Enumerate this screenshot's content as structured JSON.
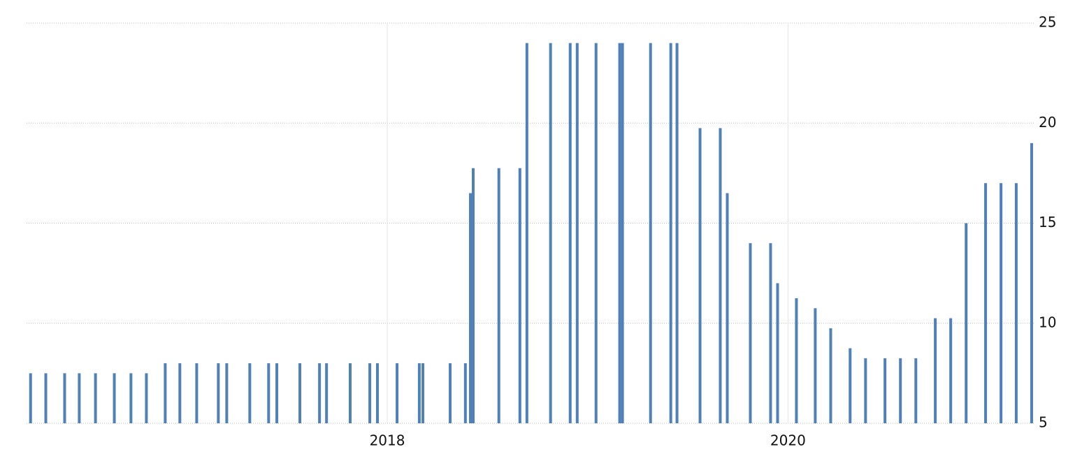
{
  "chart_data": {
    "type": "bar",
    "x": [
      2016.22,
      2016.296,
      2016.39,
      2016.463,
      2016.544,
      2016.638,
      2016.721,
      2016.798,
      2016.892,
      2016.965,
      2017.049,
      2017.157,
      2017.199,
      2017.314,
      2017.408,
      2017.449,
      2017.564,
      2017.662,
      2017.697,
      2017.815,
      2017.913,
      2017.951,
      2018.049,
      2018.16,
      2018.178,
      2018.314,
      2018.39,
      2018.415,
      2018.429,
      2018.557,
      2018.662,
      2018.697,
      2018.815,
      2018.913,
      2018.948,
      2019.042,
      2019.16,
      2019.174,
      2019.314,
      2019.415,
      2019.446,
      2019.561,
      2019.662,
      2019.697,
      2019.812,
      2019.913,
      2019.948,
      2020.042,
      2020.136,
      2020.213,
      2020.31,
      2020.387,
      2020.484,
      2020.561,
      2020.638,
      2020.735,
      2020.812,
      2020.889,
      2020.986,
      2021.063,
      2021.139,
      2021.216
    ],
    "values": [
      7.5,
      7.5,
      7.5,
      7.5,
      7.5,
      7.5,
      7.5,
      7.5,
      8,
      8,
      8,
      8,
      8,
      8,
      8,
      8,
      8,
      8,
      8,
      8,
      8,
      8,
      8,
      8,
      8,
      8,
      8,
      16.5,
      17.75,
      17.75,
      17.75,
      24,
      24,
      24,
      24,
      24,
      24,
      24,
      24,
      24,
      24,
      19.75,
      19.75,
      16.5,
      14,
      14,
      12,
      11.25,
      10.75,
      9.75,
      8.75,
      8.25,
      8.25,
      8.25,
      8.25,
      10.25,
      10.25,
      15,
      17,
      17,
      17,
      19
    ],
    "color": "#4f81b8",
    "xlim": [
      2016.2,
      2021.23
    ],
    "xticks": [
      2018,
      2020
    ],
    "ylim": [
      5,
      25
    ],
    "yticks": [
      5,
      10,
      15,
      20,
      25
    ],
    "grid": true
  }
}
